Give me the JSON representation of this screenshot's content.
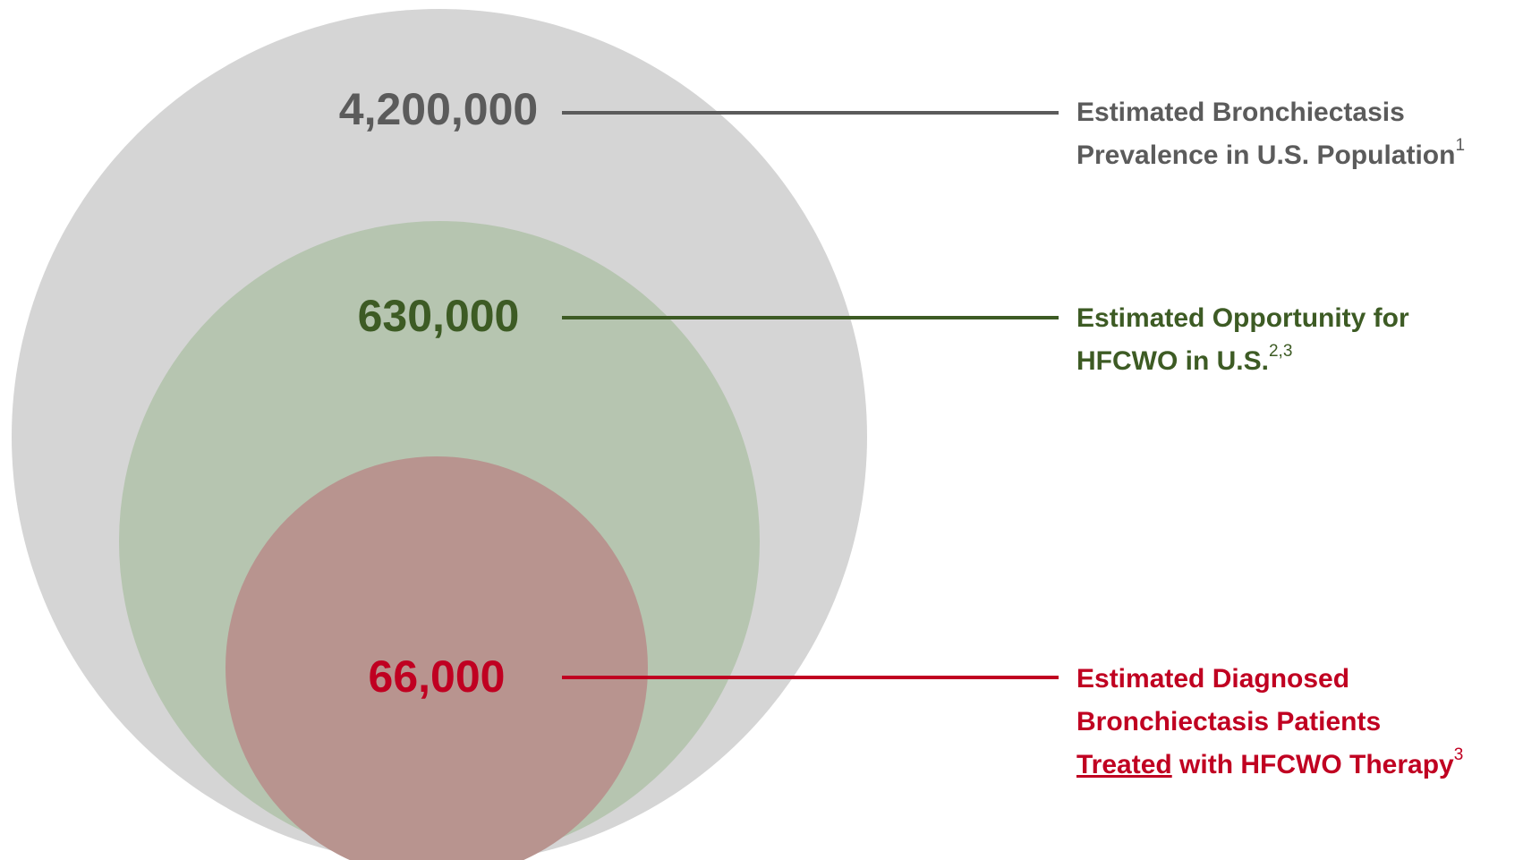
{
  "levels": [
    {
      "value": "4,200,000",
      "lines": [
        "Estimated Bronchiectasis",
        "Prevalence in U.S. Population"
      ],
      "sup": "1"
    },
    {
      "value": "630,000",
      "lines": [
        "Estimated Opportunity for",
        "HFCWO in U.S."
      ],
      "sup": "2,3"
    },
    {
      "value": "66,000",
      "lines": [
        "Estimated Diagnosed",
        "Bronchiectasis Patients"
      ],
      "underlined": "Treated",
      "last_line": " with HFCWO Therapy",
      "sup": "3"
    }
  ]
}
